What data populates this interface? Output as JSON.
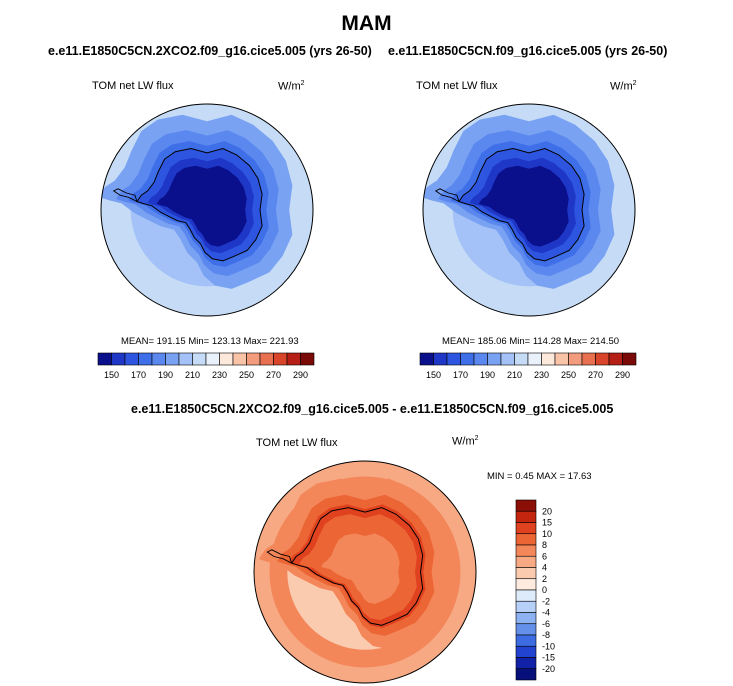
{
  "season": "MAM",
  "colors": {
    "ocean_cold": "#c6dcf6",
    "land_darkest": "#0b138f",
    "diff_red": "#e8542d"
  },
  "panels": [
    {
      "case": "e.e11.E1850C5CN.2XCO2.f09_g16.cice5.005 (yrs 26-50)",
      "variable": "TOM net LW flux",
      "units": "W/m",
      "units_sup": "2",
      "stats": "MEAN= 191.15  Min= 123.13  Max= 221.93"
    },
    {
      "case": "e.e11.E1850C5CN.f09_g16.cice5.005 (yrs 26-50)",
      "variable": "TOM net LW flux",
      "units": "W/m",
      "units_sup": "2",
      "stats": "MEAN= 185.06  Min= 114.28  Max= 214.50"
    }
  ],
  "difference": {
    "title": "e.e11.E1850C5CN.2XCO2.f09_g16.cice5.005 - e.e11.E1850C5CN.f09_g16.cice5.005",
    "variable": "TOM net LW flux",
    "units": "W/m",
    "units_sup": "2",
    "stats": "MIN =   0.45 MAX =  17.63"
  },
  "chart_data": [
    {
      "type": "heatmap",
      "title": "e.e11.E1850C5CN.2XCO2.f09_g16.cice5.005 (yrs 26-50)",
      "projection": "polar stereographic, south pole",
      "colorbar": {
        "tick_labels": [
          "150",
          "170",
          "190",
          "210",
          "230",
          "250",
          "270",
          "290"
        ],
        "levels": [
          140,
          150,
          160,
          170,
          180,
          190,
          200,
          210,
          220,
          230,
          240,
          250,
          260,
          270,
          280,
          290
        ],
        "colors": [
          "#0a0f8c",
          "#1f37c7",
          "#2d55e0",
          "#3f6fe8",
          "#5b88ee",
          "#7aa2f3",
          "#a4c2f7",
          "#c6dcf6",
          "#e9f1fb",
          "#fde8dc",
          "#f9c3a8",
          "#f39c7d",
          "#e86f4f",
          "#d9452b",
          "#b51f15",
          "#7a0a07"
        ]
      },
      "mean": 191.15,
      "min": 123.13,
      "max": 221.93
    },
    {
      "type": "heatmap",
      "title": "e.e11.E1850C5CN.f09_g16.cice5.005 (yrs 26-50)",
      "projection": "polar stereographic, south pole",
      "colorbar": {
        "tick_labels": [
          "150",
          "170",
          "190",
          "210",
          "230",
          "250",
          "270",
          "290"
        ],
        "levels": [
          140,
          150,
          160,
          170,
          180,
          190,
          200,
          210,
          220,
          230,
          240,
          250,
          260,
          270,
          280,
          290
        ],
        "colors": [
          "#0a0f8c",
          "#1f37c7",
          "#2d55e0",
          "#3f6fe8",
          "#5b88ee",
          "#7aa2f3",
          "#a4c2f7",
          "#c6dcf6",
          "#e9f1fb",
          "#fde8dc",
          "#f9c3a8",
          "#f39c7d",
          "#e86f4f",
          "#d9452b",
          "#b51f15",
          "#7a0a07"
        ]
      },
      "mean": 185.06,
      "min": 114.28,
      "max": 214.5
    },
    {
      "type": "heatmap",
      "title": "e.e11.E1850C5CN.2XCO2.f09_g16.cice5.005 - e.e11.E1850C5CN.f09_g16.cice5.005",
      "projection": "polar stereographic, south pole",
      "colorbar": {
        "orientation": "vertical",
        "tick_labels": [
          "20",
          "15",
          "10",
          "8",
          "6",
          "4",
          "2",
          "0",
          "-2",
          "-4",
          "-6",
          "-8",
          "-10",
          "-15",
          "-20"
        ],
        "colors": [
          "#8b0f07",
          "#c3250f",
          "#e0421f",
          "#ec6534",
          "#f3875a",
          "#f7a984",
          "#fbcbb0",
          "#fdebe0",
          "#deebfb",
          "#b6d0f7",
          "#8db2f1",
          "#6590ea",
          "#3d6ce2",
          "#2242d0",
          "#1121a8",
          "#07107a"
        ]
      },
      "min": 0.45,
      "max": 17.63
    }
  ]
}
